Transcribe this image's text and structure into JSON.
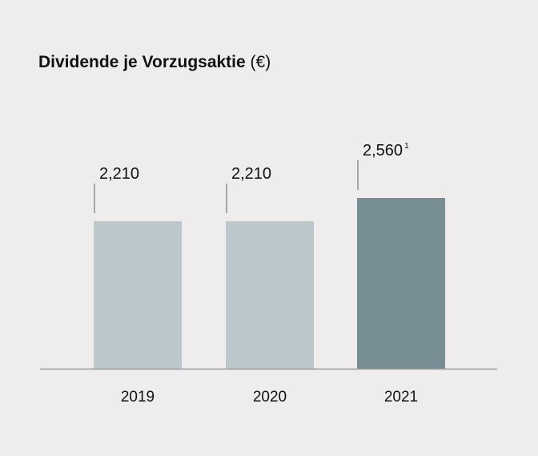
{
  "chart_data": {
    "type": "bar",
    "title": "Dividende je Vorzugsaktie",
    "title_unit": "(€)",
    "categories": [
      "2019",
      "2020",
      "2021"
    ],
    "values": [
      2.21,
      2.21,
      2.56
    ],
    "value_labels": [
      "2,210",
      "2,210",
      "2,560"
    ],
    "value_footnotes": [
      "",
      "",
      "1"
    ],
    "colors": [
      "#bcc7cb",
      "#bcc7cb",
      "#778f94"
    ],
    "axis_color": "#9a9a9a",
    "xlabel": "",
    "ylabel": "",
    "ylim": [
      0,
      2.56
    ],
    "grid": false,
    "legend": "none"
  }
}
